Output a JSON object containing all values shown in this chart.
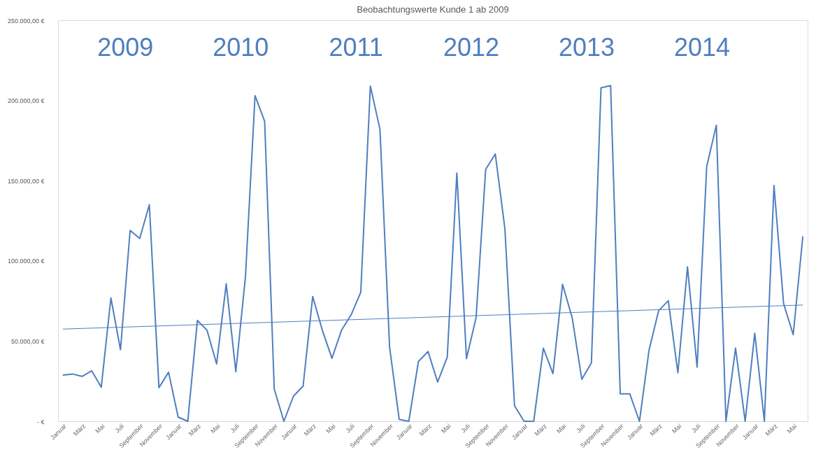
{
  "chart_data": {
    "type": "line",
    "title": "Beobachtungswerte Kunde 1 ab 2009",
    "annotations": [
      "2009",
      "2010",
      "2011",
      "2012",
      "2013",
      "2014"
    ],
    "categories": [
      "Januar",
      null,
      "März",
      null,
      "Mai",
      null,
      "Juli",
      null,
      "September",
      null,
      "November",
      null,
      "Januar",
      null,
      "März",
      null,
      "Mai",
      null,
      "Juli",
      null,
      "September",
      null,
      "November",
      null,
      "Januar",
      null,
      "März",
      null,
      "Mai",
      null,
      "Juli",
      null,
      "September",
      null,
      "November",
      null,
      "Januar",
      null,
      "März",
      null,
      "Mai",
      null,
      "Juli",
      null,
      "September",
      null,
      "November",
      null,
      "Januar",
      null,
      "März",
      null,
      "Mai",
      null,
      "Juli",
      null,
      "September",
      null,
      "November",
      null,
      "Januar",
      null,
      "März",
      null,
      "Mai",
      null,
      "Juli",
      null,
      "September",
      null,
      "November",
      null,
      "Januar",
      null,
      "März",
      null,
      "Mai",
      null
    ],
    "series": [
      {
        "color": "#4f7fbf",
        "values": [
          28800,
          29500,
          28000,
          31500,
          21300,
          76900,
          44600,
          119000,
          114000,
          135000,
          21000,
          30600,
          2600,
          0,
          62900,
          56800,
          35800,
          85700,
          30900,
          90000,
          203000,
          187000,
          20100,
          0,
          15700,
          21900,
          77800,
          56800,
          39300,
          56800,
          66400,
          80400,
          209000,
          182000,
          46300,
          1200,
          0,
          37300,
          43500,
          24500,
          40000,
          154800,
          39100,
          64600,
          157100,
          166700,
          120000,
          9700,
          0,
          0,
          45600,
          29700,
          85400,
          64600,
          26200,
          36400,
          207900,
          209300,
          17100,
          17100,
          0,
          44400,
          69000,
          75200,
          30300,
          96300,
          33800,
          158900,
          184600,
          0,
          45600,
          0,
          54900,
          0,
          147000,
          73400,
          54000,
          115300
        ]
      },
      {
        "type": "line",
        "color": "#4f7fbf",
        "values": [
          57500,
          null,
          null,
          null,
          null,
          null,
          null,
          null,
          null,
          null,
          null,
          null,
          null,
          null,
          null,
          null,
          null,
          null,
          null,
          null,
          null,
          null,
          null,
          null,
          null,
          null,
          null,
          null,
          null,
          null,
          null,
          null,
          null,
          null,
          null,
          null,
          null,
          null,
          null,
          null,
          null,
          null,
          null,
          null,
          null,
          null,
          null,
          null,
          null,
          null,
          null,
          null,
          null,
          null,
          null,
          null,
          null,
          null,
          null,
          null,
          null,
          null,
          null,
          null,
          null,
          null,
          null,
          null,
          null,
          null,
          null,
          null,
          null,
          null,
          null,
          null,
          null,
          72500
        ]
      }
    ],
    "ylim": [
      0,
      250000
    ],
    "yticks": [
      {
        "value": 0,
        "label": "-   €"
      },
      {
        "value": 50000,
        "label": "50.000,00 €"
      },
      {
        "value": 100000,
        "label": "100.000,00 €"
      },
      {
        "value": 150000,
        "label": "150.000,00 €"
      },
      {
        "value": 200000,
        "label": "200.000,00 €"
      },
      {
        "value": 250000,
        "label": "250.000,00 €"
      }
    ],
    "marker": "none"
  }
}
